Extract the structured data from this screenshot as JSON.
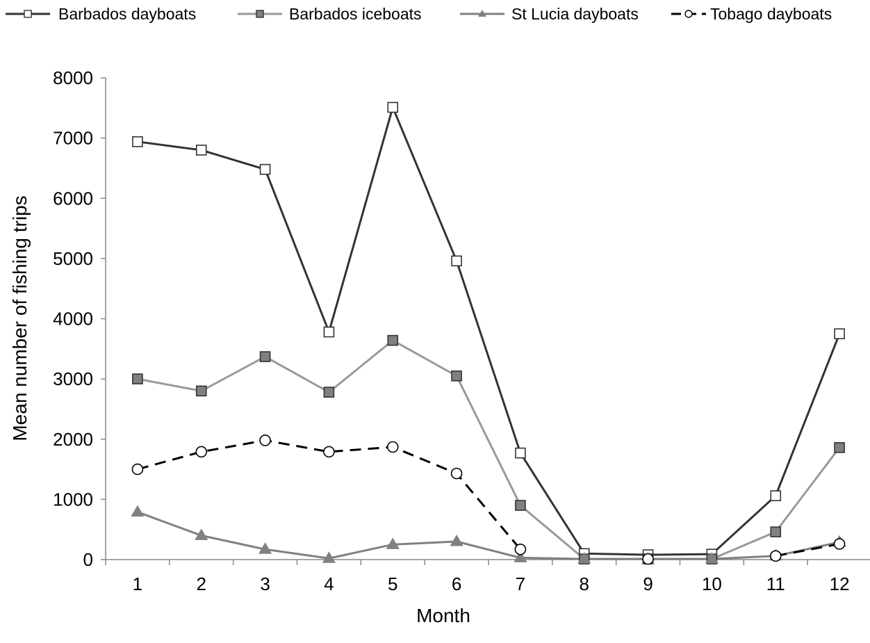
{
  "chart_data": {
    "type": "line",
    "xlabel": "Month",
    "ylabel": "Mean number of fishing trips",
    "x": [
      1,
      2,
      3,
      4,
      5,
      6,
      7,
      8,
      9,
      10,
      11,
      12
    ],
    "ylim": [
      0,
      8000
    ],
    "yticks": [
      0,
      1000,
      2000,
      3000,
      4000,
      5000,
      6000,
      7000,
      8000
    ],
    "grid": false,
    "legend_position": "top",
    "series": [
      {
        "name": "Barbados dayboats",
        "values": [
          6940,
          6800,
          6480,
          3780,
          7510,
          4960,
          1770,
          100,
          80,
          90,
          1060,
          3750
        ]
      },
      {
        "name": "Barbados iceboats",
        "values": [
          3000,
          2800,
          3370,
          2780,
          3640,
          3050,
          900,
          10,
          10,
          10,
          460,
          1860
        ]
      },
      {
        "name": "St Lucia dayboats",
        "values": [
          790,
          400,
          170,
          20,
          250,
          300,
          30,
          10,
          10,
          10,
          60,
          290
        ]
      },
      {
        "name": "Tobago dayboats",
        "values": [
          1500,
          1790,
          1980,
          1790,
          1870,
          1430,
          170,
          null,
          10,
          null,
          60,
          260
        ]
      }
    ]
  },
  "styles": {
    "series": [
      {
        "color": "#333333",
        "marker": "open-square",
        "dash": "none"
      },
      {
        "color": "#999999",
        "marker": "filled-square",
        "marker_fill": "#808080",
        "dash": "none"
      },
      {
        "color": "#808080",
        "marker": "filled-triangle",
        "marker_fill": "#808080",
        "dash": "none"
      },
      {
        "color": "#000000",
        "marker": "open-circle",
        "dash": "dashed"
      }
    ]
  }
}
